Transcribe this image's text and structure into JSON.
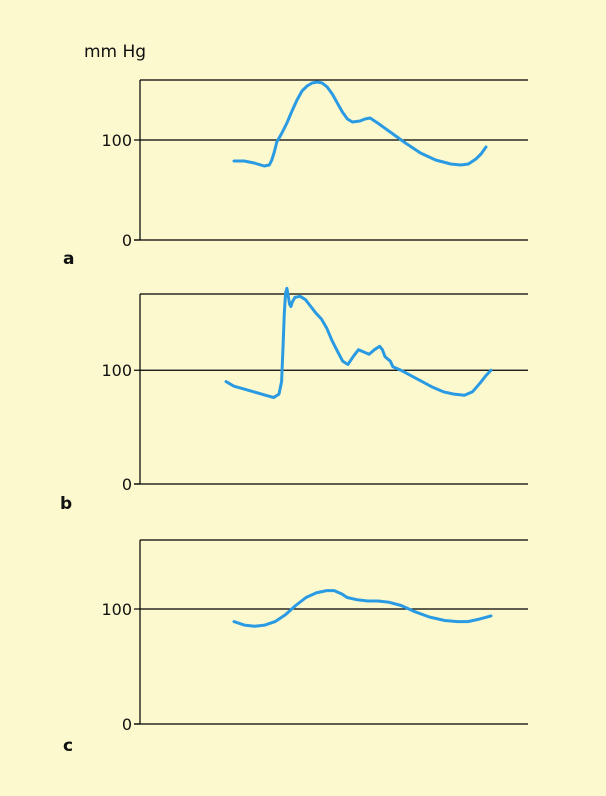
{
  "unit_label": "mm Hg",
  "colors": {
    "background": "#fdf9cf",
    "trace": "#2a9be3",
    "axis": "#000000"
  },
  "chart_data": [
    {
      "type": "line",
      "panel_label": "a",
      "ylim": [
        0,
        160
      ],
      "gridlines": [
        100,
        160
      ],
      "y_ticks": [
        "0",
        "100"
      ],
      "series": [
        {
          "points": [
            [
              0,
              79
            ],
            [
              0.04,
              79
            ],
            [
              0.08,
              77
            ],
            [
              0.12,
              74
            ],
            [
              0.14,
              75
            ],
            [
              0.15,
              80
            ],
            [
              0.16,
              88
            ],
            [
              0.17,
              98
            ],
            [
              0.19,
              107
            ],
            [
              0.21,
              117
            ],
            [
              0.23,
              129
            ],
            [
              0.25,
              140
            ],
            [
              0.27,
              149
            ],
            [
              0.29,
              154
            ],
            [
              0.31,
              157
            ],
            [
              0.33,
              158
            ],
            [
              0.35,
              157
            ],
            [
              0.37,
              153
            ],
            [
              0.39,
              146
            ],
            [
              0.41,
              137
            ],
            [
              0.43,
              128
            ],
            [
              0.45,
              121
            ],
            [
              0.47,
              118
            ],
            [
              0.5,
              119
            ],
            [
              0.52,
              121
            ],
            [
              0.54,
              122
            ],
            [
              0.57,
              117
            ],
            [
              0.62,
              108
            ],
            [
              0.68,
              97
            ],
            [
              0.74,
              87
            ],
            [
              0.8,
              80
            ],
            [
              0.86,
              76
            ],
            [
              0.9,
              75
            ],
            [
              0.93,
              76
            ],
            [
              0.96,
              81
            ],
            [
              0.98,
              86
            ],
            [
              1.0,
              93
            ]
          ]
        }
      ]
    },
    {
      "type": "line",
      "panel_label": "b",
      "ylim": [
        0,
        167
      ],
      "gridlines": [
        100,
        167
      ],
      "y_ticks": [
        "0",
        "100"
      ],
      "series": [
        {
          "points": [
            [
              0,
              90
            ],
            [
              0.03,
              86
            ],
            [
              0.06,
              84
            ],
            [
              0.09,
              82
            ],
            [
              0.12,
              80
            ],
            [
              0.15,
              78
            ],
            [
              0.18,
              76
            ],
            [
              0.2,
              79
            ],
            [
              0.21,
              90
            ],
            [
              0.215,
              120
            ],
            [
              0.22,
              150
            ],
            [
              0.225,
              168
            ],
            [
              0.23,
              172
            ],
            [
              0.235,
              165
            ],
            [
              0.24,
              158
            ],
            [
              0.245,
              156
            ],
            [
              0.25,
              160
            ],
            [
              0.26,
              164
            ],
            [
              0.28,
              165
            ],
            [
              0.3,
              162
            ],
            [
              0.32,
              156
            ],
            [
              0.34,
              150
            ],
            [
              0.36,
              145
            ],
            [
              0.38,
              137
            ],
            [
              0.4,
              126
            ],
            [
              0.42,
              117
            ],
            [
              0.44,
              108
            ],
            [
              0.46,
              105
            ],
            [
              0.48,
              112
            ],
            [
              0.5,
              118
            ],
            [
              0.52,
              116
            ],
            [
              0.54,
              114
            ],
            [
              0.56,
              118
            ],
            [
              0.58,
              121
            ],
            [
              0.59,
              118
            ],
            [
              0.6,
              112
            ],
            [
              0.61,
              110
            ],
            [
              0.62,
              108
            ],
            [
              0.63,
              103
            ],
            [
              0.66,
              100
            ],
            [
              0.7,
              95
            ],
            [
              0.74,
              90
            ],
            [
              0.78,
              85
            ],
            [
              0.82,
              81
            ],
            [
              0.86,
              79
            ],
            [
              0.9,
              78
            ],
            [
              0.93,
              81
            ],
            [
              0.96,
              89
            ],
            [
              0.98,
              95
            ],
            [
              1.0,
              100
            ]
          ]
        }
      ]
    },
    {
      "type": "line",
      "panel_label": "c",
      "ylim": [
        0,
        160
      ],
      "gridlines": [
        100,
        160
      ],
      "y_ticks": [
        "0",
        "100"
      ],
      "series": [
        {
          "points": [
            [
              0,
              89
            ],
            [
              0.04,
              86
            ],
            [
              0.08,
              85
            ],
            [
              0.12,
              86
            ],
            [
              0.16,
              89
            ],
            [
              0.2,
              95
            ],
            [
              0.24,
              103
            ],
            [
              0.28,
              110
            ],
            [
              0.32,
              114
            ],
            [
              0.36,
              116
            ],
            [
              0.39,
              116
            ],
            [
              0.42,
              113
            ],
            [
              0.44,
              110
            ],
            [
              0.48,
              108
            ],
            [
              0.52,
              107
            ],
            [
              0.56,
              107
            ],
            [
              0.6,
              106
            ],
            [
              0.65,
              103
            ],
            [
              0.7,
              98
            ],
            [
              0.76,
              93
            ],
            [
              0.82,
              90
            ],
            [
              0.87,
              89
            ],
            [
              0.91,
              89
            ],
            [
              0.95,
              91
            ],
            [
              1.0,
              94
            ]
          ]
        }
      ]
    }
  ]
}
